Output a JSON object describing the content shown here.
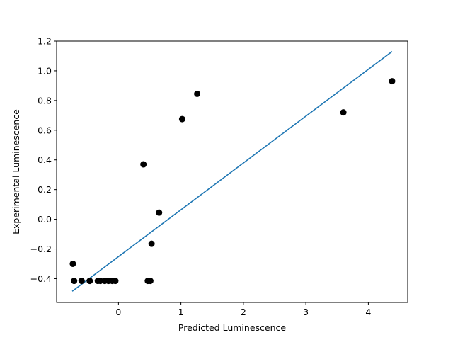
{
  "chart_data": {
    "type": "scatter",
    "title": "",
    "xlabel": "Predicted Luminescence",
    "ylabel": "Experimental Luminescence",
    "xlim": [
      -0.99,
      4.63
    ],
    "ylim": [
      -0.56,
      1.2
    ],
    "xticks": [
      0,
      1,
      2,
      3,
      4
    ],
    "xtick_labels": [
      "0",
      "1",
      "2",
      "3",
      "4"
    ],
    "yticks": [
      -0.4,
      -0.2,
      0.0,
      0.2,
      0.4,
      0.6,
      0.8,
      1.0,
      1.2
    ],
    "ytick_labels": [
      "−0.4",
      "−0.2",
      "0.0",
      "0.2",
      "0.4",
      "0.6",
      "0.8",
      "1.0",
      "1.2"
    ],
    "grid": false,
    "points": {
      "name": "",
      "color": "#000000",
      "x": [
        -0.73,
        -0.71,
        -0.59,
        -0.46,
        -0.33,
        -0.29,
        -0.22,
        -0.16,
        -0.1,
        -0.05,
        0.4,
        0.47,
        0.51,
        0.53,
        0.65,
        1.02,
        1.26,
        3.6,
        4.38
      ],
      "y": [
        -0.3,
        -0.415,
        -0.415,
        -0.415,
        -0.415,
        -0.415,
        -0.415,
        -0.415,
        -0.415,
        -0.415,
        0.37,
        -0.415,
        -0.415,
        -0.165,
        0.045,
        0.675,
        0.845,
        0.72,
        0.93
      ]
    },
    "fit_line": {
      "name": "",
      "color": "#1f77b4",
      "x": [
        -0.74,
        4.38
      ],
      "y": [
        -0.485,
        1.13
      ]
    }
  }
}
